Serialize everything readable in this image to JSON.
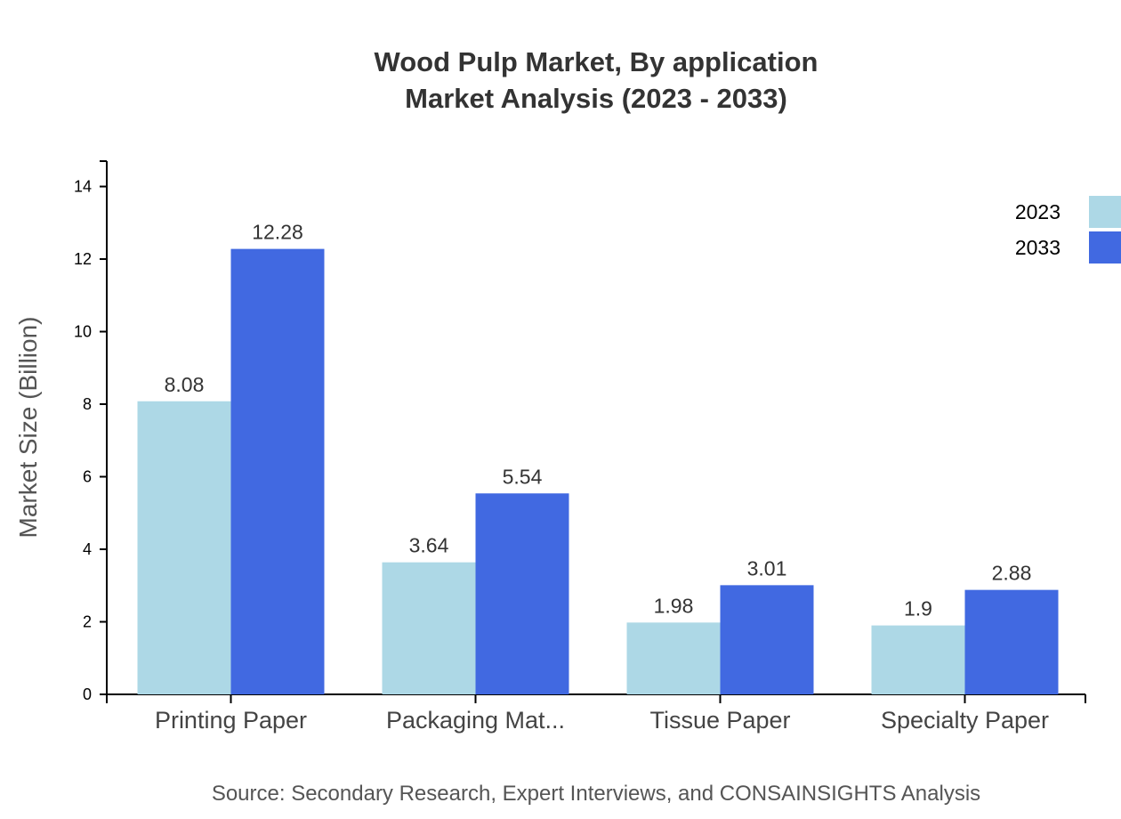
{
  "chart_data": {
    "type": "bar",
    "title": "Wood Pulp Market, By application",
    "subtitle": "Market Analysis (2023 - 2033)",
    "ylabel": "Market Size (Billion)",
    "xlabel": "",
    "ylim": [
      0,
      14.7
    ],
    "yticks": [
      0,
      2,
      4,
      6,
      8,
      10,
      12,
      14
    ],
    "categories": [
      "Printing Paper",
      "Packaging Mat...",
      "Tissue Paper",
      "Specialty Paper"
    ],
    "series": [
      {
        "name": "2023",
        "color": "#add8e6",
        "values": [
          8.08,
          3.64,
          1.98,
          1.9
        ]
      },
      {
        "name": "2033",
        "color": "#4169e1",
        "values": [
          12.28,
          5.54,
          3.01,
          2.88
        ]
      }
    ],
    "legend_position": "top-right",
    "grid": false
  },
  "source": "Source: Secondary Research, Expert Interviews, and CONSAINSIGHTS Analysis"
}
